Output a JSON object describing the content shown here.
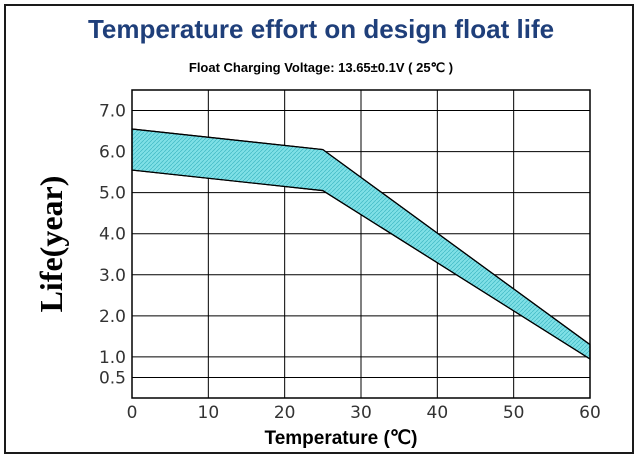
{
  "chart_data": {
    "type": "area",
    "title": "Temperature effort on design float life",
    "subtitle": "Float Charging Voltage: 13.65±0.1V ( 25℃ )",
    "xlabel": "Temperature (℃)",
    "ylabel": "Life(year)",
    "x_ticks": [
      "0",
      "10",
      "20",
      "30",
      "40",
      "50",
      "60"
    ],
    "y_ticks": [
      "0.5",
      "1.0",
      "2.0",
      "3.0",
      "4.0",
      "5.0",
      "6.0",
      "7.0"
    ],
    "xlim": [
      0,
      60
    ],
    "ylim": [
      0,
      7.5
    ],
    "grid": true,
    "band_color": "#7fe0e6",
    "band_hatch_color": "#3fb8c4",
    "series": [
      {
        "name": "upper",
        "x": [
          0,
          25,
          60
        ],
        "y": [
          6.55,
          6.05,
          1.3
        ]
      },
      {
        "name": "lower",
        "x": [
          0,
          25,
          60
        ],
        "y": [
          5.55,
          5.05,
          0.95
        ]
      }
    ]
  }
}
